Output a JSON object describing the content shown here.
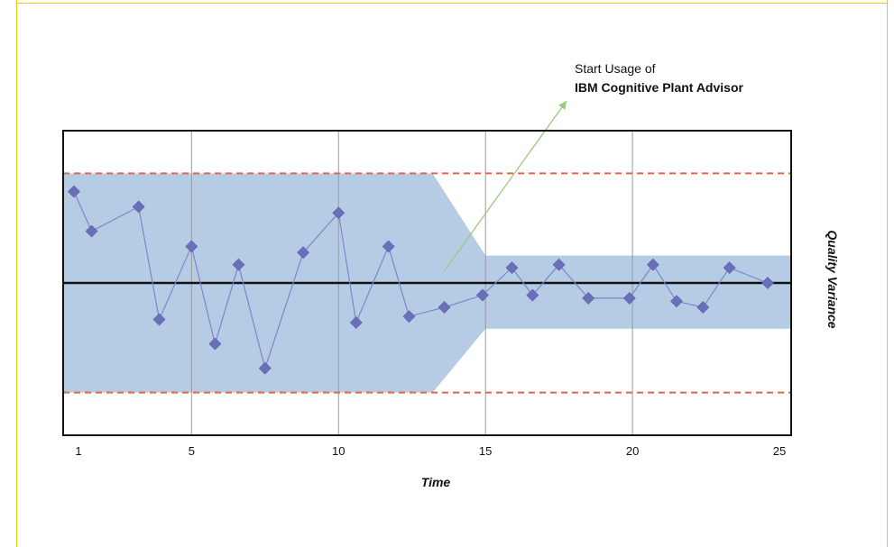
{
  "colors": {
    "band": "#b5cce4",
    "series": "#7f85c8",
    "marker": "#6a70b8",
    "center_line": "#111111",
    "limit_line": "#d96a4a",
    "grid": "#9a9a9a",
    "arrow": "#9cc97f",
    "frame": "#f1c40f"
  },
  "chart_data": {
    "type": "line",
    "title": "",
    "xlabel": "Time",
    "ylabel": "Quality Variance",
    "x_ticks": [
      1,
      5,
      10,
      15,
      20,
      25
    ],
    "xlim": [
      1,
      25
    ],
    "ylim": [
      -5,
      5
    ],
    "center_line": 0,
    "limits": {
      "upper": 3.6,
      "lower": -3.6
    },
    "band": {
      "before": {
        "upper": 3.6,
        "lower": -3.6,
        "until_x": 13.2
      },
      "after": {
        "upper": 0.9,
        "lower": -1.5,
        "from_x": 15
      }
    },
    "series": [
      {
        "x": [
          1,
          1.6,
          3.2,
          3.9,
          5,
          5.8,
          6.6,
          7.5,
          8.8,
          10,
          10.6,
          11.7,
          12.4,
          13.6,
          14.9,
          15.9,
          16.6,
          17.5,
          18.5,
          19.9,
          20.7,
          21.5,
          22.4,
          23.3,
          24.6
        ],
        "y": [
          3.0,
          1.7,
          2.5,
          -1.2,
          1.2,
          -2.0,
          0.6,
          -2.8,
          1.0,
          2.3,
          -1.3,
          1.2,
          -1.1,
          -0.8,
          -0.4,
          0.5,
          -0.4,
          0.6,
          -0.5,
          -0.5,
          0.6,
          -0.6,
          -0.8,
          0.5,
          0
        ]
      }
    ],
    "annotations": [
      {
        "x": 13.6,
        "y": 0.4,
        "line1": "Start Usage of",
        "line2": "IBM Cognitive Plant Advisor"
      }
    ],
    "grid_x": [
      5,
      10,
      15,
      20
    ],
    "legend": "none"
  }
}
